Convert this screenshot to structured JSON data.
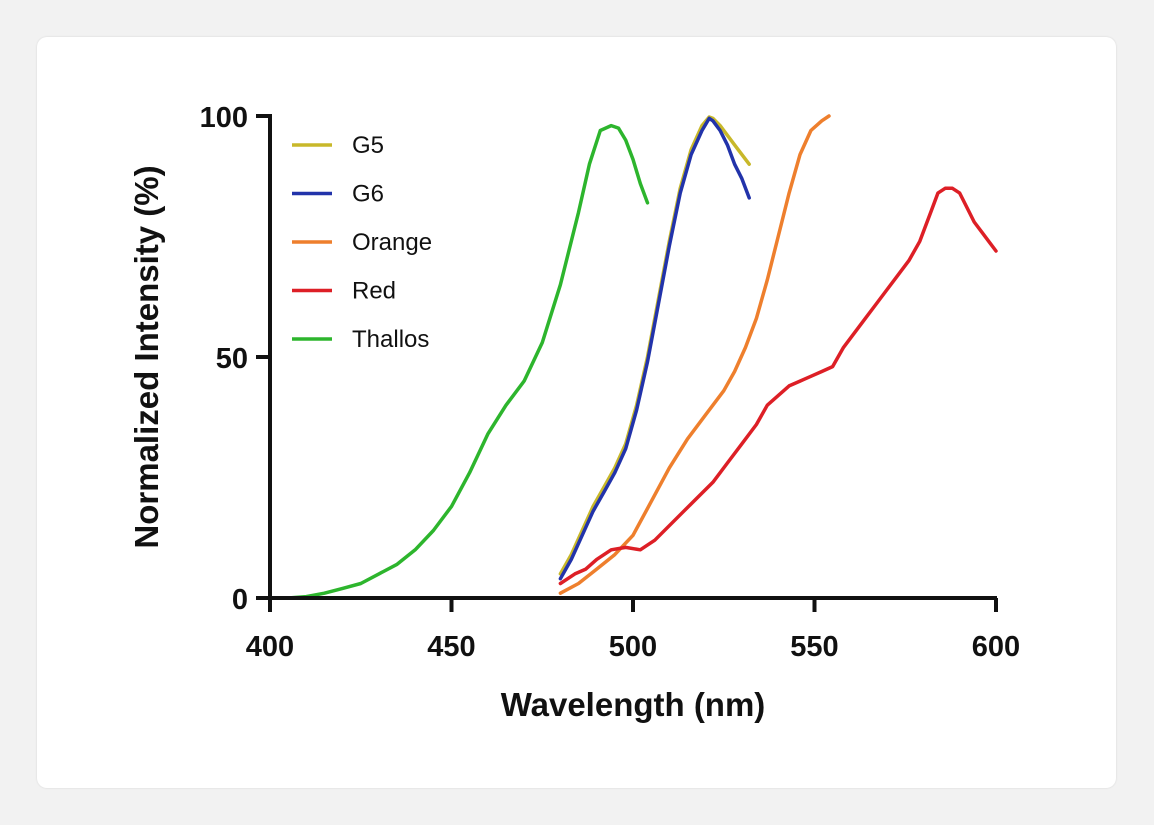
{
  "chart_data": {
    "type": "line",
    "title": "",
    "xlabel": "Wavelength (nm)",
    "ylabel": "Normalized Intensity (%)",
    "xlim": [
      400,
      600
    ],
    "ylim": [
      0,
      100
    ],
    "xticks": [
      "400",
      "450",
      "500",
      "550",
      "600"
    ],
    "yticks": [
      "0",
      "50",
      "100"
    ],
    "legend_position": "top-left",
    "series": [
      {
        "name": "G5",
        "color": "#c8b82a",
        "x": [
          480,
          483,
          486,
          489,
          492,
          495,
          498,
          501,
          504,
          507,
          510,
          513,
          516,
          519,
          521,
          522,
          524,
          526,
          528,
          530,
          532
        ],
        "y": [
          5,
          9,
          14,
          19,
          23,
          27,
          32,
          40,
          50,
          62,
          74,
          85,
          93,
          98,
          99.8,
          99.5,
          98,
          96,
          94,
          92,
          90
        ]
      },
      {
        "name": "G6",
        "color": "#2233aa",
        "x": [
          480,
          483,
          486,
          489,
          492,
          495,
          498,
          501,
          504,
          507,
          510,
          513,
          516,
          519,
          521,
          522,
          524,
          526,
          528,
          530,
          532
        ],
        "y": [
          4,
          8,
          13,
          18,
          22,
          26,
          31,
          39,
          49,
          61,
          73,
          84,
          92,
          97,
          99.5,
          99,
          97,
          94,
          90,
          87,
          83
        ]
      },
      {
        "name": "Orange",
        "color": "#ee7f2d",
        "x": [
          480,
          485,
          490,
          495,
          500,
          505,
          510,
          515,
          520,
          525,
          528,
          531,
          534,
          537,
          540,
          543,
          546,
          549,
          552,
          554
        ],
        "y": [
          1,
          3,
          6,
          9,
          13,
          20,
          27,
          33,
          38,
          43,
          47,
          52,
          58,
          66,
          75,
          84,
          92,
          97,
          99,
          100
        ]
      },
      {
        "name": "Red",
        "color": "#dd1f26",
        "x": [
          480,
          484,
          487,
          490,
          494,
          498,
          502,
          506,
          510,
          514,
          518,
          522,
          526,
          530,
          534,
          537,
          540,
          543,
          546,
          549,
          552,
          555,
          558,
          561,
          564,
          567,
          570,
          573,
          576,
          579,
          582,
          584,
          586,
          588,
          590,
          592,
          594,
          596,
          598,
          600
        ],
        "y": [
          3,
          5,
          6,
          8,
          10,
          10.5,
          10,
          12,
          15,
          18,
          21,
          24,
          28,
          32,
          36,
          40,
          42,
          44,
          45,
          46,
          47,
          48,
          52,
          55,
          58,
          61,
          64,
          67,
          70,
          74,
          80,
          84,
          85,
          85,
          84,
          81,
          78,
          76,
          74,
          72
        ]
      },
      {
        "name": "Thallos",
        "color": "#2db52d",
        "x": [
          400,
          405,
          410,
          415,
          420,
          425,
          430,
          435,
          440,
          445,
          450,
          455,
          460,
          465,
          470,
          475,
          480,
          485,
          488,
          491,
          494,
          496,
          498,
          500,
          502,
          504
        ],
        "y": [
          0,
          0,
          0.3,
          1,
          2,
          3,
          5,
          7,
          10,
          14,
          19,
          26,
          34,
          40,
          45,
          53,
          65,
          80,
          90,
          97,
          98,
          97.5,
          95,
          91,
          86,
          82
        ]
      }
    ]
  }
}
